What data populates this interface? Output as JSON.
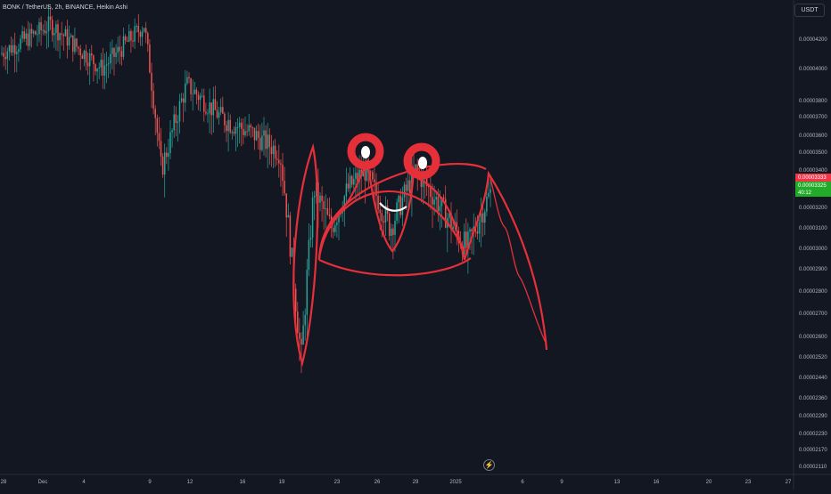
{
  "header": {
    "symbol": "BONK / TetherUS, 2h, BINANCE, Heikin Ashi",
    "currency": "USDT"
  },
  "price_tags": {
    "last_price": "0.00003333",
    "second_price": "0.00003325",
    "countdown": "40:12"
  },
  "colors": {
    "background": "#131722",
    "up_candle": "#26a69a",
    "down_candle": "#ef5350",
    "drawing": "#e5303a",
    "axis_text": "#b2b5be",
    "up_tag": "#22ab28",
    "down_tag": "#f23645"
  },
  "icons": {
    "settle": "lightning-icon"
  },
  "chart_data": {
    "type": "candlestick",
    "ylim": [
      2.1e-06,
      4.3e-06
    ],
    "y_ticks": [
      "0.00004200",
      "0.00004000",
      "0.00003800",
      "0.00003700",
      "0.00003600",
      "0.00003500",
      "0.00003400",
      "0.00003300",
      "0.00003200",
      "0.00003100",
      "0.00003000",
      "0.00002900",
      "0.00002800",
      "0.00002700",
      "0.00002600",
      "0.00002520",
      "0.00002440",
      "0.00002360",
      "0.00002290",
      "0.00002230",
      "0.00002170",
      "0.00002110"
    ],
    "x_ticks": [
      "28",
      "Dec",
      "4",
      "9",
      "12",
      "16",
      "19",
      "23",
      "26",
      "29",
      "2025",
      "6",
      "9",
      "13",
      "16",
      "20",
      "23",
      "27"
    ],
    "price_path": [
      [
        0,
        4.1e-06
      ],
      [
        0.06,
        4.3e-06
      ],
      [
        0.12,
        4e-06
      ],
      [
        0.17,
        4.3e-06
      ],
      [
        0.19,
        3.4e-06
      ],
      [
        0.22,
        3.9e-06
      ],
      [
        0.24,
        3.8e-06
      ],
      [
        0.26,
        3.7e-06
      ],
      [
        0.3,
        3.6e-06
      ],
      [
        0.33,
        3.5e-06
      ],
      [
        0.34,
        3.1e-06
      ],
      [
        0.355,
        2.5e-06
      ],
      [
        0.37,
        3.3e-06
      ],
      [
        0.39,
        3.1e-06
      ],
      [
        0.41,
        3.3e-06
      ],
      [
        0.43,
        3.4e-06
      ],
      [
        0.46,
        3.1e-06
      ],
      [
        0.49,
        3.4e-06
      ],
      [
        0.52,
        3.2e-06
      ],
      [
        0.55,
        3e-06
      ],
      [
        0.58,
        3.3e-06
      ]
    ],
    "annotations": [
      "hand-drawn crab/face outline with two eyes and a smile"
    ]
  }
}
